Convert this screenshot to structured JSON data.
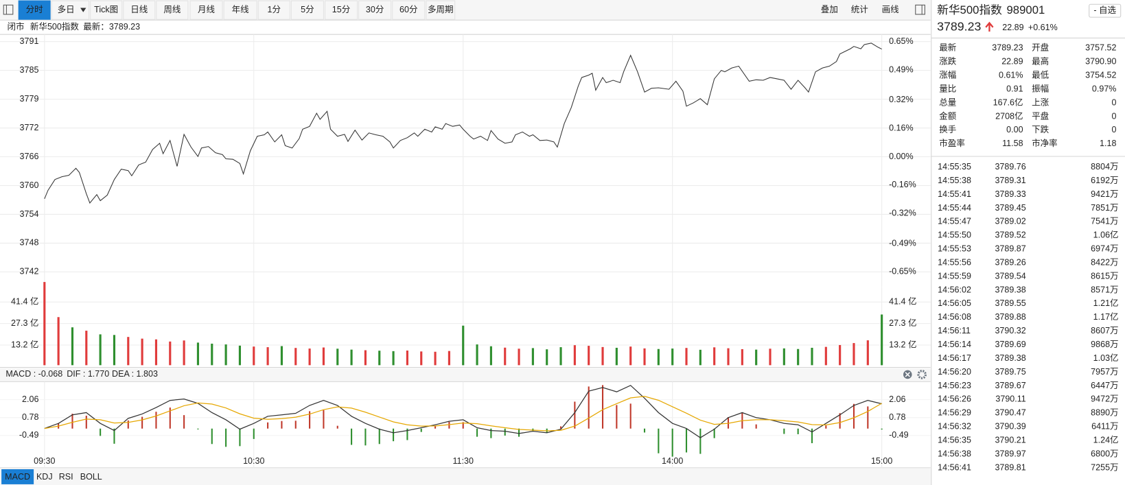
{
  "toolbar": {
    "left": [
      "分时",
      "多日",
      "Tick图",
      "日线",
      "周线",
      "月线",
      "年线",
      "1分",
      "5分",
      "15分",
      "30分",
      "60分",
      "多周期"
    ],
    "right": [
      "叠加",
      "统计",
      "画线"
    ],
    "active_index": 0
  },
  "status": {
    "state": "闭市",
    "name": "新华500指数",
    "latest": "最新：3789.23"
  },
  "quote": {
    "name": "新华500指数",
    "code": "989001",
    "watch": "- 自选",
    "price": "3789.23",
    "change": "22.89",
    "change_pct": "+0.61%",
    "color": "#e03b3b",
    "name_color": "#e0861f"
  },
  "stats": [
    {
      "label": "最新",
      "value": "3789.23",
      "color": "#e03b3b"
    },
    {
      "label": "开盘",
      "value": "3757.52",
      "color": "#2f8f2f"
    },
    {
      "label": "涨跌",
      "value": "22.89",
      "color": "#e03b3b"
    },
    {
      "label": "最高",
      "value": "3790.90",
      "color": "#e03b3b"
    },
    {
      "label": "涨幅",
      "value": "0.61%",
      "color": "#e03b3b"
    },
    {
      "label": "最低",
      "value": "3754.52",
      "color": "#2f8f2f"
    },
    {
      "label": "量比",
      "value": "0.91",
      "color": "#2f8f2f"
    },
    {
      "label": "振幅",
      "value": "0.97%",
      "color": "#222222"
    },
    {
      "label": "总量",
      "value": "167.6亿",
      "color": "#222222"
    },
    {
      "label": "上涨",
      "value": "0",
      "color": "#e03b3b"
    },
    {
      "label": "金额",
      "value": "2708亿",
      "color": "#222222"
    },
    {
      "label": "平盘",
      "value": "0",
      "color": "#222222"
    },
    {
      "label": "换手",
      "value": "0.00",
      "color": "#222222"
    },
    {
      "label": "下跌",
      "value": "0",
      "color": "#2f8f2f"
    },
    {
      "label": "市盈率",
      "value": "11.58",
      "color": "#222222"
    },
    {
      "label": "市净率",
      "value": "1.18",
      "color": "#222222"
    }
  ],
  "trades": {
    "price_color": "#e03b3b",
    "volume_color": "#2a7ab8",
    "rows": [
      [
        "14:55:35",
        "3789.76",
        "8804万"
      ],
      [
        "14:55:38",
        "3789.31",
        "6192万"
      ],
      [
        "14:55:41",
        "3789.33",
        "9421万"
      ],
      [
        "14:55:44",
        "3789.45",
        "7851万"
      ],
      [
        "14:55:47",
        "3789.02",
        "7541万"
      ],
      [
        "14:55:50",
        "3789.52",
        "1.06亿"
      ],
      [
        "14:55:53",
        "3789.87",
        "6974万"
      ],
      [
        "14:55:56",
        "3789.26",
        "8422万"
      ],
      [
        "14:55:59",
        "3789.54",
        "8615万"
      ],
      [
        "14:56:02",
        "3789.38",
        "8571万"
      ],
      [
        "14:56:05",
        "3789.55",
        "1.21亿"
      ],
      [
        "14:56:08",
        "3789.88",
        "1.17亿"
      ],
      [
        "14:56:11",
        "3790.32",
        "8607万"
      ],
      [
        "14:56:14",
        "3789.69",
        "9868万"
      ],
      [
        "14:56:17",
        "3789.38",
        "1.03亿"
      ],
      [
        "14:56:20",
        "3789.75",
        "7957万"
      ],
      [
        "14:56:23",
        "3789.67",
        "6447万"
      ],
      [
        "14:56:26",
        "3790.11",
        "9472万"
      ],
      [
        "14:56:29",
        "3790.47",
        "8890万"
      ],
      [
        "14:56:32",
        "3790.39",
        "6411万"
      ],
      [
        "14:56:35",
        "3790.21",
        "1.24亿"
      ],
      [
        "14:56:38",
        "3789.97",
        "6800万"
      ],
      [
        "14:56:41",
        "3789.81",
        "7255万"
      ]
    ]
  },
  "indicator_tabs": {
    "items": [
      "MACD",
      "KDJ",
      "RSI",
      "BOLL"
    ],
    "active_index": 0
  },
  "chart_data": [
    {
      "type": "line",
      "color": "#333333",
      "grid": true,
      "up_color": "#e03b3b",
      "down_color": "#2f8f2f",
      "x": [
        0,
        1,
        3,
        5,
        7,
        9,
        10,
        12,
        13,
        15,
        16,
        18,
        20,
        22,
        24,
        25,
        27,
        29,
        31,
        33,
        34,
        36,
        38,
        40,
        42,
        44,
        45,
        47,
        49,
        51,
        52,
        54,
        56,
        57,
        59,
        61,
        63,
        64,
        66,
        68,
        69,
        71,
        73,
        74,
        76,
        78,
        79,
        81,
        82,
        84,
        86,
        87,
        89,
        91,
        93,
        95,
        97,
        99,
        100,
        102,
        104,
        106,
        107,
        109,
        111,
        112,
        114,
        115,
        117,
        119,
        120,
        122,
        123,
        125,
        127,
        128,
        130,
        132,
        134,
        135,
        137,
        139,
        140,
        142,
        144,
        146,
        147,
        149,
        151,
        153,
        154,
        156,
        157,
        158,
        160,
        161,
        163,
        165,
        166,
        168,
        170,
        172,
        174,
        176,
        179,
        181,
        183,
        184,
        186,
        188,
        190,
        192,
        194,
        195,
        197,
        199,
        202,
        204,
        206,
        208,
        210,
        212,
        214,
        216,
        218,
        219,
        221,
        223,
        225,
        227,
        228,
        231,
        232,
        234,
        235,
        237,
        239,
        240
      ],
      "values": [
        3757.4,
        3759.2,
        3761.5,
        3762.1,
        3762.4,
        3763.9,
        3763.0,
        3758.5,
        3756.5,
        3758.3,
        3757.0,
        3758.2,
        3761.5,
        3763.7,
        3763.4,
        3762.3,
        3764.6,
        3765.2,
        3767.9,
        3769.2,
        3767.0,
        3769.8,
        3764.3,
        3771.1,
        3768.4,
        3766.4,
        3768.2,
        3768.5,
        3767.2,
        3766.8,
        3765.9,
        3765.8,
        3764.9,
        3762.7,
        3767.6,
        3770.7,
        3771.0,
        3771.6,
        3769.5,
        3771.0,
        3768.7,
        3768.2,
        3770.2,
        3772.2,
        3772.8,
        3775.6,
        3774.3,
        3776.0,
        3772.2,
        3770.7,
        3771.1,
        3769.6,
        3772.0,
        3769.9,
        3771.4,
        3771.0,
        3770.7,
        3769.5,
        3768.2,
        3769.8,
        3770.4,
        3771.4,
        3770.7,
        3772.2,
        3771.6,
        3772.7,
        3772.2,
        3773.4,
        3772.8,
        3773.1,
        3772.2,
        3770.7,
        3770.1,
        3770.7,
        3769.8,
        3771.9,
        3770.1,
        3769.2,
        3769.5,
        3771.0,
        3771.6,
        3770.7,
        3771.0,
        3769.8,
        3769.9,
        3769.5,
        3768.4,
        3773.4,
        3776.8,
        3781.4,
        3783.2,
        3783.7,
        3784.1,
        3780.5,
        3783.2,
        3782.1,
        3782.6,
        3782.1,
        3784.4,
        3787.9,
        3784.4,
        3780.1,
        3780.9,
        3781.0,
        3780.7,
        3782.4,
        3780.3,
        3777.1,
        3777.8,
        3778.7,
        3777.4,
        3782.9,
        3784.7,
        3784.4,
        3785.2,
        3785.6,
        3782.4,
        3782.7,
        3782.6,
        3783.2,
        3782.9,
        3782.6,
        3780.7,
        3782.6,
        3781.0,
        3780.1,
        3784.4,
        3785.2,
        3785.6,
        3786.6,
        3788.2,
        3789.3,
        3789.8,
        3789.3,
        3790.2,
        3790.5,
        3789.6,
        3789.23
      ],
      "xlim": [
        0,
        240
      ],
      "xticks": [
        0,
        60,
        120,
        180,
        240
      ],
      "ylim": [
        3741.86,
        3790.82
      ],
      "yticks": [
        {
          "value": 3790.82,
          "label": "3791"
        },
        {
          "value": 3784.7,
          "label": "3785"
        },
        {
          "value": 3778.58,
          "label": "3779"
        },
        {
          "value": 3772.46,
          "label": "3772"
        },
        {
          "value": 3766.34,
          "label": "3766"
        },
        {
          "value": 3760.22,
          "label": "3760"
        },
        {
          "value": 3754.1,
          "label": "3754"
        },
        {
          "value": 3747.98,
          "label": "3748"
        },
        {
          "value": 3741.86,
          "label": "3742"
        }
      ],
      "y2lim": [
        -0.65,
        0.65
      ],
      "y2ticks": [
        {
          "value": 0.65,
          "label": "0.65%"
        },
        {
          "value": 0.49,
          "label": "0.49%"
        },
        {
          "value": 0.32,
          "label": "0.32%"
        },
        {
          "value": 0.16,
          "label": "0.16%"
        },
        {
          "value": 0,
          "label": "0.00%"
        },
        {
          "value": -0.16,
          "label": "-0.16%"
        },
        {
          "value": -0.32,
          "label": "-0.32%"
        },
        {
          "value": -0.49,
          "label": "-0.49%"
        },
        {
          "value": -0.65,
          "label": "-0.65%"
        }
      ]
    },
    {
      "type": "bar",
      "grid": true,
      "x": [
        0,
        4,
        8,
        12,
        16,
        20,
        24,
        28,
        32,
        36,
        40,
        44,
        48,
        52,
        56,
        60,
        64,
        68,
        72,
        76,
        80,
        84,
        88,
        92,
        96,
        100,
        104,
        108,
        112,
        116,
        120,
        124,
        128,
        132,
        136,
        140,
        144,
        148,
        152,
        156,
        160,
        164,
        168,
        172,
        176,
        180,
        184,
        188,
        192,
        196,
        200,
        204,
        208,
        212,
        216,
        220,
        224,
        228,
        232,
        236,
        240
      ],
      "values": [
        54.5,
        31.5,
        24.8,
        22.6,
        20.2,
        19.8,
        18.5,
        17.4,
        16.9,
        15.5,
        16.2,
        14.8,
        14.1,
        13.6,
        12.8,
        12.2,
        11.8,
        12.5,
        11.3,
        10.9,
        11.6,
        10.8,
        10.2,
        9.8,
        9.5,
        9.2,
        9.6,
        9.0,
        8.8,
        9.3,
        25.9,
        13.6,
        12.4,
        11.5,
        10.8,
        11.2,
        10.4,
        11.8,
        13.1,
        12.7,
        11.9,
        11.4,
        12.2,
        11.0,
        10.6,
        10.9,
        11.3,
        10.1,
        11.7,
        11.1,
        10.5,
        10.2,
        10.8,
        11.0,
        10.6,
        11.4,
        12.0,
        13.2,
        14.5,
        16.3,
        33.2
      ],
      "colors": [
        "#e03b3b",
        "#e03b3b",
        "#2f8f2f",
        "#e03b3b",
        "#2f8f2f",
        "#2f8f2f",
        "#e03b3b",
        "#e03b3b",
        "#e03b3b",
        "#e03b3b",
        "#e03b3b",
        "#2f8f2f",
        "#2f8f2f",
        "#2f8f2f",
        "#2f8f2f",
        "#e03b3b",
        "#e03b3b",
        "#2f8f2f",
        "#e03b3b",
        "#e03b3b",
        "#e03b3b",
        "#2f8f2f",
        "#2f8f2f",
        "#e03b3b",
        "#2f8f2f",
        "#2f8f2f",
        "#e03b3b",
        "#e03b3b",
        "#e03b3b",
        "#e03b3b",
        "#2f8f2f",
        "#2f8f2f",
        "#2f8f2f",
        "#e03b3b",
        "#e03b3b",
        "#2f8f2f",
        "#2f8f2f",
        "#2f8f2f",
        "#e03b3b",
        "#e03b3b",
        "#e03b3b",
        "#2f8f2f",
        "#e03b3b",
        "#e03b3b",
        "#2f8f2f",
        "#2f8f2f",
        "#e03b3b",
        "#2f8f2f",
        "#e03b3b",
        "#e03b3b",
        "#e03b3b",
        "#2f8f2f",
        "#e03b3b",
        "#2f8f2f",
        "#2f8f2f",
        "#2f8f2f",
        "#e03b3b",
        "#e03b3b",
        "#e03b3b",
        "#e03b3b",
        "#2f8f2f"
      ],
      "xlim": [
        0,
        240
      ],
      "xticks": [
        0,
        60,
        120,
        180,
        240
      ],
      "ylim": [
        0,
        55
      ],
      "yticks": [
        {
          "value": 41.4,
          "label": "41.4 亿"
        },
        {
          "value": 27.3,
          "label": "27.3 亿"
        },
        {
          "value": 13.2,
          "label": "13.2 亿"
        }
      ]
    },
    {
      "type": "macd",
      "up_color": "#c0392b",
      "down_color": "#2f8f2f",
      "x": [
        0,
        4,
        8,
        12,
        16,
        20,
        24,
        28,
        32,
        36,
        40,
        44,
        48,
        52,
        56,
        60,
        64,
        68,
        72,
        76,
        80,
        84,
        88,
        92,
        96,
        100,
        104,
        108,
        112,
        116,
        120,
        124,
        128,
        132,
        136,
        140,
        144,
        148,
        152,
        156,
        160,
        164,
        168,
        172,
        176,
        180,
        184,
        188,
        192,
        196,
        200,
        204,
        208,
        212,
        216,
        220,
        224,
        228,
        232,
        236,
        240
      ],
      "series": [
        {
          "name": "MACD : -0.068",
          "color": "#d63cd6",
          "values": [
            0.0,
            0.38,
            1.06,
            0.92,
            -0.52,
            -1.08,
            0.58,
            0.84,
            1.2,
            1.5,
            0.96,
            -0.06,
            -1.1,
            -1.3,
            -1.25,
            -0.74,
            0.44,
            0.54,
            0.56,
            1.24,
            1.32,
            0.2,
            -1.16,
            -1.2,
            -1.1,
            -0.9,
            -0.82,
            -0.24,
            0.16,
            0.48,
            0.46,
            -0.58,
            -0.68,
            -0.5,
            -0.58,
            -0.16,
            -0.28,
            0.16,
            1.92,
            3.0,
            3.1,
            1.68,
            1.78,
            -0.28,
            -1.76,
            -2.0,
            -1.7,
            -1.8,
            -0.68,
            0.82,
            1.16,
            0.3,
            0.0,
            -0.38,
            -0.4,
            -1.04,
            0.22,
            1.1,
            1.76,
            1.58,
            -0.068
          ]
        },
        {
          "name": "DIF : 1.770",
          "color": "#333333",
          "values": [
            0.01,
            0.37,
            0.98,
            1.14,
            0.37,
            -0.14,
            0.73,
            1.04,
            1.5,
            2.01,
            2.11,
            1.8,
            1.14,
            0.63,
            -0.04,
            0.37,
            0.88,
            0.98,
            1.09,
            1.65,
            2.01,
            1.65,
            0.88,
            0.37,
            -0.04,
            -0.3,
            -0.14,
            0.06,
            0.27,
            0.52,
            0.63,
            0.06,
            -0.14,
            -0.19,
            -0.35,
            -0.19,
            -0.3,
            -0.04,
            1.14,
            2.67,
            2.93,
            2.62,
            3.08,
            2.16,
            1.14,
            0.37,
            0.01,
            -0.65,
            -0.04,
            0.78,
            1.14,
            0.78,
            0.63,
            0.37,
            0.27,
            -0.24,
            0.37,
            0.98,
            1.65,
            2.01,
            1.77
          ]
        },
        {
          "name": "DEA : 1.803",
          "color": "#e6a700",
          "values": [
            0.01,
            0.18,
            0.45,
            0.68,
            0.63,
            0.4,
            0.44,
            0.62,
            0.9,
            1.26,
            1.63,
            1.83,
            1.75,
            1.47,
            1.05,
            0.74,
            0.66,
            0.71,
            0.81,
            1.03,
            1.35,
            1.55,
            1.46,
            1.17,
            0.82,
            0.48,
            0.27,
            0.18,
            0.19,
            0.28,
            0.4,
            0.35,
            0.2,
            0.06,
            -0.06,
            -0.11,
            -0.16,
            -0.12,
            0.18,
            0.75,
            1.35,
            1.78,
            2.19,
            2.3,
            2.02,
            1.56,
            1.1,
            0.6,
            0.3,
            0.37,
            0.56,
            0.63,
            0.63,
            0.56,
            0.47,
            0.28,
            0.26,
            0.43,
            0.77,
            1.22,
            1.803
          ]
        }
      ],
      "xlim": [
        0,
        240
      ],
      "xticks": [
        {
          "value": 0,
          "label": "09:30"
        },
        {
          "value": 60,
          "label": "10:30"
        },
        {
          "value": 120,
          "label": "11:30"
        },
        {
          "value": 180,
          "label": "14:00"
        },
        {
          "value": 240,
          "label": "15:00"
        }
      ],
      "ylim": [
        -2.18,
        3.19
      ],
      "yticks": [
        2.06,
        0.78,
        -0.49
      ]
    }
  ]
}
